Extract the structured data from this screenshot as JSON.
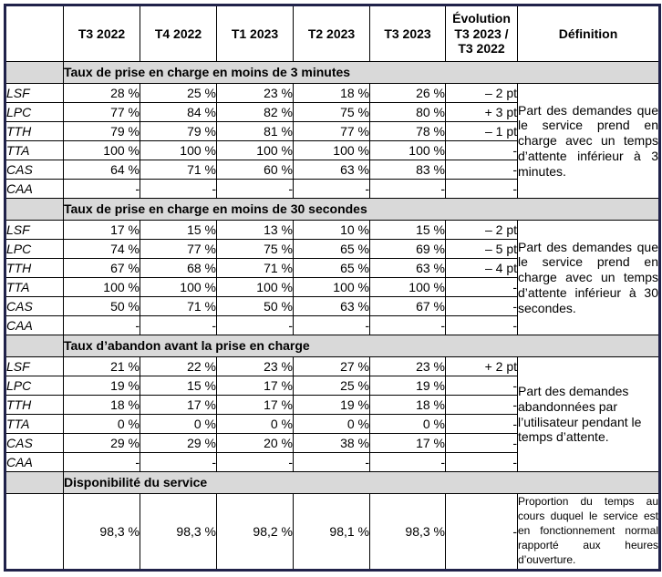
{
  "table": {
    "quarters": [
      "T3 2022",
      "T4 2022",
      "T1 2023",
      "T2 2023",
      "T3 2023"
    ],
    "evolution_header": "Évolution\nT3 2023 /\nT3 2022",
    "definition_header": "Définition",
    "sections": [
      {
        "title": "Taux de prise en charge en moins de 3 minutes",
        "definition": "Part des demandes que le service prend en charge avec un temps d’attente inférieur à 3 minutes.",
        "rows": [
          {
            "label": "LSF",
            "values": [
              "28 %",
              "25 %",
              "23 %",
              "18 %",
              "26 %"
            ],
            "evolution": "– 2 pt"
          },
          {
            "label": "LPC",
            "values": [
              "77 %",
              "84 %",
              "82 %",
              "75 %",
              "80 %"
            ],
            "evolution": "+ 3 pt"
          },
          {
            "label": "TTH",
            "values": [
              "79 %",
              "79 %",
              "81 %",
              "77 %",
              "78 %"
            ],
            "evolution": "– 1 pt"
          },
          {
            "label": "TTA",
            "values": [
              "100 %",
              "100 %",
              "100 %",
              "100 %",
              "100 %"
            ],
            "evolution": "-"
          },
          {
            "label": "CAS",
            "values": [
              "64 %",
              "71 %",
              "60 %",
              "63 %",
              "83 %"
            ],
            "evolution": "-"
          },
          {
            "label": "CAA",
            "values": [
              "-",
              "-",
              "-",
              "-",
              "-"
            ],
            "evolution": "-"
          }
        ]
      },
      {
        "title": "Taux de prise en charge en moins de 30 secondes",
        "definition": "Part des demandes que le service prend en charge avec un temps d’attente inférieur à 30 secondes.",
        "rows": [
          {
            "label": "LSF",
            "values": [
              "17 %",
              "15 %",
              "13 %",
              "10 %",
              "15 %"
            ],
            "evolution": "– 2 pt"
          },
          {
            "label": "LPC",
            "values": [
              "74 %",
              "77 %",
              "75 %",
              "65 %",
              "69 %"
            ],
            "evolution": "– 5 pt"
          },
          {
            "label": "TTH",
            "values": [
              "67 %",
              "68 %",
              "71 %",
              "65 %",
              "63 %"
            ],
            "evolution": "– 4 pt"
          },
          {
            "label": "TTA",
            "values": [
              "100 %",
              "100 %",
              "100 %",
              "100 %",
              "100 %"
            ],
            "evolution": "-"
          },
          {
            "label": "CAS",
            "values": [
              "50 %",
              "71 %",
              "50 %",
              "63 %",
              "67 %"
            ],
            "evolution": "-"
          },
          {
            "label": "CAA",
            "values": [
              "-",
              "-",
              "-",
              "-",
              "-"
            ],
            "evolution": "-"
          }
        ]
      },
      {
        "title": "Taux d’abandon avant la prise en charge",
        "definition": "Part des demandes abandonnées par l’utilisateur pendant le temps d’attente.",
        "rows": [
          {
            "label": "LSF",
            "values": [
              "21 %",
              "22 %",
              "23 %",
              "27 %",
              "23 %"
            ],
            "evolution": "+ 2 pt"
          },
          {
            "label": "LPC",
            "values": [
              "19 %",
              "15 %",
              "17 %",
              "25 %",
              "19 %"
            ],
            "evolution": "-"
          },
          {
            "label": "TTH",
            "values": [
              "18 %",
              "17 %",
              "17 %",
              "19 %",
              "18 %"
            ],
            "evolution": "-"
          },
          {
            "label": "TTA",
            "values": [
              "0 %",
              "0 %",
              "0 %",
              "0 %",
              "0 %"
            ],
            "evolution": "-"
          },
          {
            "label": "CAS",
            "values": [
              "29 %",
              "29 %",
              "20 %",
              "38 %",
              "17 %"
            ],
            "evolution": "-"
          },
          {
            "label": "CAA",
            "values": [
              "-",
              "-",
              "-",
              "-",
              "-"
            ],
            "evolution": "-"
          }
        ]
      }
    ],
    "availability": {
      "title": "Disponibilité du service",
      "values": [
        "98,3 %",
        "98,3 %",
        "98,2 %",
        "98,1 %",
        "98,3 %"
      ],
      "evolution": "-",
      "definition": "Proportion du temps au cours duquel le service est en fonctionnement normal rapporté aux heures d’ouverture."
    },
    "colors": {
      "outer_border": "#20224a",
      "grid": "#000000",
      "section_band_bg": "#d9d9d9",
      "text": "#000000"
    }
  }
}
